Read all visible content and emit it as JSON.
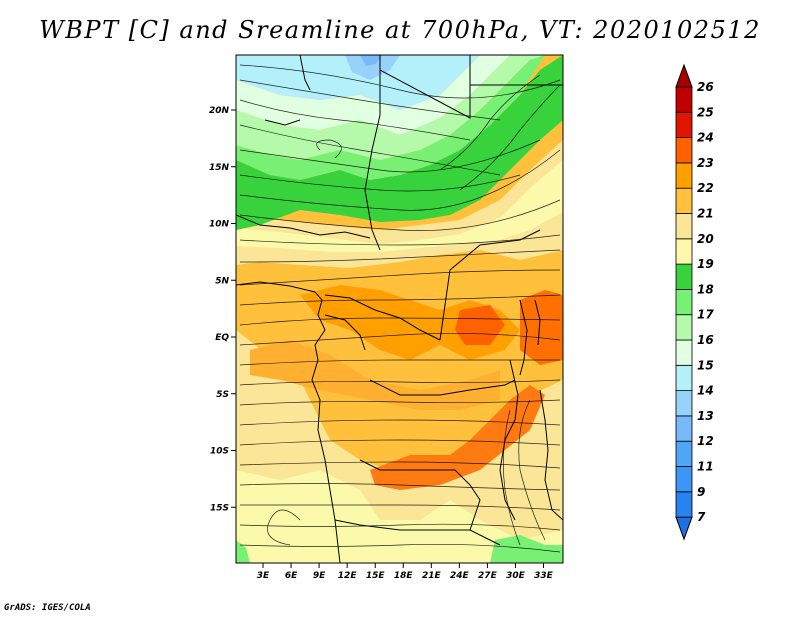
{
  "title": "WBPT [C] and Sreamline at 700hPa, VT: 2020102512",
  "footer": "GrADS: IGES/COLA",
  "map": {
    "lat_labels": [
      {
        "lat": 20,
        "label": "20N"
      },
      {
        "lat": 15,
        "label": "15N"
      },
      {
        "lat": 10,
        "label": "10N"
      },
      {
        "lat": 5,
        "label": "5N"
      },
      {
        "lat": 0,
        "label": "EQ"
      },
      {
        "lat": -5,
        "label": "5S"
      },
      {
        "lat": -10,
        "label": "10S"
      },
      {
        "lat": -15,
        "label": "15S"
      }
    ],
    "lon_labels": [
      {
        "lon": 3,
        "label": "3E"
      },
      {
        "lon": 6,
        "label": "6E"
      },
      {
        "lon": 9,
        "label": "9E"
      },
      {
        "lon": 12,
        "label": "12E"
      },
      {
        "lon": 15,
        "label": "15E"
      },
      {
        "lon": 18,
        "label": "18E"
      },
      {
        "lon": 21,
        "label": "21E"
      },
      {
        "lon": 24,
        "label": "24E"
      },
      {
        "lon": 27,
        "label": "27E"
      },
      {
        "lon": 30,
        "label": "30E"
      },
      {
        "lon": 33,
        "label": "33E"
      }
    ]
  },
  "colorbar": {
    "labels": [
      "7",
      "9",
      "11",
      "12",
      "13",
      "14",
      "15",
      "16",
      "17",
      "18",
      "19",
      "20",
      "21",
      "22",
      "23",
      "24",
      "25",
      "26"
    ],
    "colors": [
      "#1e6ee6",
      "#2882f0",
      "#3c96f5",
      "#50a5f5",
      "#78b9fa",
      "#96d2fa",
      "#b4f0fa",
      "#e1ffe1",
      "#b4faaa",
      "#78f073",
      "#37d23c",
      "#fafaaa",
      "#fae696",
      "#ffc03c",
      "#ffa000",
      "#ff6000",
      "#e11400",
      "#c00000",
      "#a50000"
    ]
  }
}
